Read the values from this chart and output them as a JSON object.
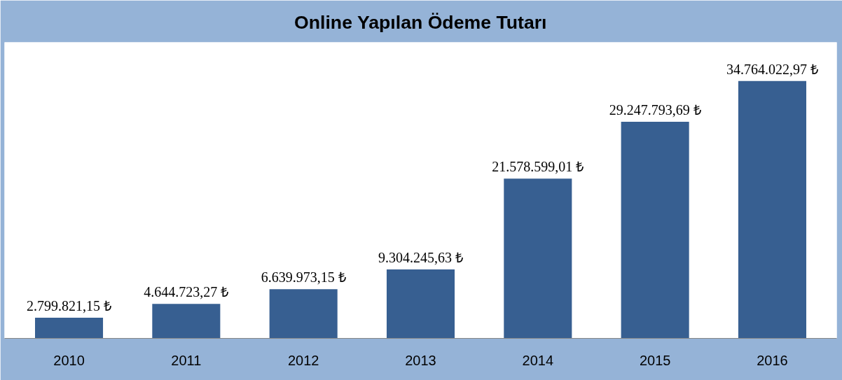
{
  "chart_data": {
    "type": "bar",
    "title": "Online Yapılan Ödeme Tutarı",
    "categories": [
      "2010",
      "2011",
      "2012",
      "2013",
      "2014",
      "2015",
      "2016"
    ],
    "values": [
      2799821.15,
      4644723.27,
      6639973.15,
      9304245.63,
      21578599.01,
      29247793.69,
      34764022.97
    ],
    "value_labels": [
      "2.799.821,15 ₺",
      "4.644.723,27 ₺",
      "6.639.973,15 ₺",
      "9.304.245,63 ₺",
      "21.578.599,01 ₺",
      "29.247.793,69 ₺",
      "34.764.022,97 ₺"
    ],
    "color": "#375f91"
  }
}
